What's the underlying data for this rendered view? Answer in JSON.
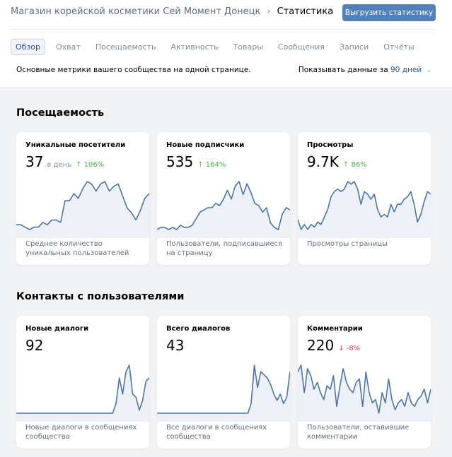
{
  "header": {
    "breadcrumb_parent": "Магазин корейской косметики Сей Момент Донецк",
    "breadcrumb_separator": "›",
    "breadcrumb_current": "Статистика",
    "export_button": "Выгрузить статистику"
  },
  "tabs": [
    {
      "label": "Обзор",
      "active": true
    },
    {
      "label": "Охват"
    },
    {
      "label": "Посещаемость"
    },
    {
      "label": "Активность"
    },
    {
      "label": "Товары"
    },
    {
      "label": "Сообщения"
    },
    {
      "label": "Записи"
    },
    {
      "label": "Отчёты"
    }
  ],
  "description": "Основные метрики вашего сообщества на одной странице.",
  "period": {
    "prefix": "Показывать данные за",
    "value": "90 дней",
    "chevron": "⌄"
  },
  "sections": [
    {
      "title": "Посещаемость",
      "cards": [
        {
          "title": "Уникальные посетители",
          "value": "37",
          "unit": "в день",
          "delta": "↑ 106%",
          "trend": "up",
          "caption": "Среднее количество уникальных пользователей",
          "series": [
            2,
            2,
            1,
            0,
            1,
            1,
            3,
            2,
            4,
            4,
            3,
            12,
            12,
            15,
            13,
            17,
            20,
            19,
            16,
            19,
            20,
            16,
            18,
            19,
            14,
            9,
            7,
            4,
            8,
            13,
            15
          ]
        },
        {
          "title": "Новые подписчики",
          "value": "535",
          "unit": "",
          "delta": "↑ 164%",
          "trend": "up",
          "caption": "Пользователи, подписавшиеся на страницу",
          "series": [
            0,
            1,
            1,
            0,
            1,
            0,
            2,
            1,
            1,
            2,
            5,
            8,
            9,
            10,
            10,
            12,
            11,
            14,
            18,
            14,
            20,
            22,
            16,
            21,
            17,
            12,
            11,
            8,
            10,
            3,
            1,
            0,
            7,
            10,
            9
          ]
        },
        {
          "title": "Просмотры",
          "value": "9.7K",
          "unit": "",
          "delta": "↑ 86%",
          "trend": "up",
          "caption": "Просмотры страницы",
          "series": [
            4,
            0,
            2,
            0,
            2,
            1,
            3,
            2,
            5,
            8,
            13,
            15,
            16,
            15,
            16,
            19,
            18,
            19,
            16,
            10,
            15,
            14,
            12,
            14,
            8,
            5,
            6,
            5,
            10,
            7,
            10,
            10,
            12,
            13,
            15,
            10,
            3,
            6,
            11,
            15,
            14
          ]
        }
      ]
    },
    {
      "title": "Контакты с пользователями",
      "cards": [
        {
          "title": "Новые диалоги",
          "value": "92",
          "unit": "",
          "delta": "",
          "trend": "",
          "caption": "Новые диалоги в сообщениях сообщества",
          "series": [
            0,
            0,
            0,
            0,
            0,
            0,
            0,
            0,
            0,
            0,
            0,
            0,
            0,
            0,
            0,
            0,
            0,
            0,
            0,
            0,
            0,
            0,
            0,
            0,
            0,
            0,
            0,
            0,
            0,
            0,
            3,
            11,
            6,
            13,
            15,
            6,
            5,
            1,
            4,
            10,
            11
          ]
        },
        {
          "title": "Всего диалогов",
          "value": "43",
          "unit": "",
          "delta": "",
          "trend": "",
          "caption": "Все диалоги в сообщениях сообщества",
          "series": [
            0,
            0,
            0,
            0,
            0,
            0,
            0,
            0,
            0,
            0,
            0,
            0,
            0,
            0,
            0,
            0,
            0,
            0,
            0,
            0,
            0,
            0,
            0,
            0,
            0,
            0,
            0,
            0,
            0,
            3,
            15,
            8,
            13,
            12,
            11,
            9,
            6,
            4,
            6,
            3,
            5,
            13
          ]
        },
        {
          "title": "Комментарии",
          "value": "220",
          "unit": "",
          "delta": "↓ -8%",
          "trend": "down",
          "caption": "Пользователи, оставившие комментарии",
          "series": [
            12,
            14,
            6,
            13,
            11,
            7,
            9,
            6,
            4,
            8,
            7,
            11,
            2,
            8,
            13,
            9,
            7,
            6,
            9,
            10,
            2,
            12,
            6,
            3,
            4,
            0,
            6,
            3,
            10,
            4,
            1,
            3,
            4,
            2,
            6,
            3,
            2,
            4,
            5,
            7,
            3,
            7
          ]
        }
      ]
    }
  ],
  "colors": {
    "accent": "#5181b8",
    "link": "#2a5885",
    "line": "#4a76a8",
    "fill": "#edf0f5",
    "up": "#4bb34b",
    "down": "#e64646"
  }
}
